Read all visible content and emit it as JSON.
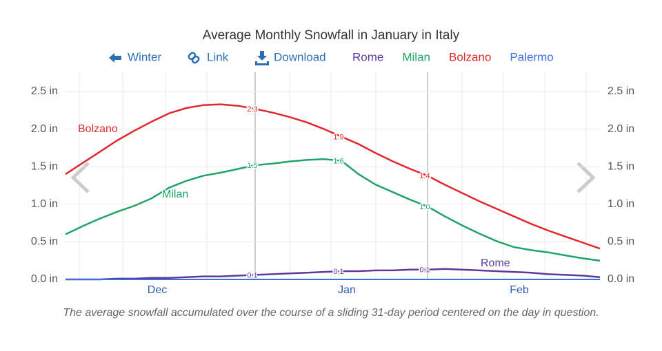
{
  "chart_data": {
    "type": "line",
    "title": "Average Monthly Snowfall in January in Italy",
    "nav": [
      "Winter",
      "Link",
      "Download"
    ],
    "categories": [
      null,
      null,
      null,
      null,
      null,
      "Dec",
      null,
      null,
      null,
      null,
      null,
      null,
      null,
      null,
      null,
      null,
      "Jan",
      null,
      null,
      null,
      null,
      null,
      null,
      null,
      null,
      null,
      "Feb",
      null,
      null,
      null,
      null,
      null
    ],
    "series": [
      {
        "name": "Rome",
        "color": "#5b3a9b",
        "values": [
          0.0,
          0.0,
          0.0,
          0.01,
          0.01,
          0.02,
          0.02,
          0.03,
          0.04,
          0.04,
          0.05,
          0.06,
          0.07,
          0.08,
          0.09,
          0.1,
          0.11,
          0.11,
          0.12,
          0.12,
          0.13,
          0.13,
          0.14,
          0.13,
          0.12,
          0.11,
          0.1,
          0.09,
          0.07,
          0.06,
          0.05,
          0.03
        ],
        "value_labels": [
          null,
          null,
          null,
          null,
          null,
          null,
          null,
          null,
          null,
          null,
          null,
          "0.1",
          null,
          null,
          null,
          null,
          "0.1",
          null,
          null,
          null,
          null,
          "0.1",
          null,
          null,
          null,
          null,
          null,
          null,
          null,
          null,
          null,
          null
        ]
      },
      {
        "name": "Milan",
        "color": "#1fa366",
        "values": [
          0.6,
          0.71,
          0.81,
          0.9,
          0.98,
          1.08,
          1.22,
          1.31,
          1.38,
          1.42,
          1.47,
          1.52,
          1.54,
          1.57,
          1.59,
          1.6,
          1.58,
          1.4,
          1.26,
          1.16,
          1.06,
          0.97,
          0.84,
          0.72,
          0.61,
          0.51,
          0.43,
          0.39,
          0.36,
          0.32,
          0.28,
          0.25
        ],
        "value_labels": [
          null,
          null,
          null,
          null,
          null,
          null,
          null,
          null,
          null,
          null,
          null,
          "1.5",
          null,
          null,
          null,
          null,
          "1.6",
          null,
          null,
          null,
          null,
          "1.0",
          null,
          null,
          null,
          null,
          null,
          null,
          null,
          null,
          null,
          null
        ]
      },
      {
        "name": "Bolzano",
        "color": "#e3262d",
        "values": [
          1.4,
          1.55,
          1.7,
          1.85,
          1.98,
          2.1,
          2.21,
          2.28,
          2.32,
          2.33,
          2.31,
          2.27,
          2.22,
          2.16,
          2.09,
          2.0,
          1.9,
          1.8,
          1.68,
          1.57,
          1.47,
          1.38,
          1.26,
          1.15,
          1.04,
          0.94,
          0.84,
          0.74,
          0.65,
          0.57,
          0.49,
          0.41
        ],
        "value_labels": [
          null,
          null,
          null,
          null,
          null,
          null,
          null,
          null,
          null,
          null,
          null,
          "2.3",
          null,
          null,
          null,
          null,
          "1.9",
          null,
          null,
          null,
          null,
          "1.4",
          null,
          null,
          null,
          null,
          null,
          null,
          null,
          null,
          null,
          null
        ]
      },
      {
        "name": "Palermo",
        "color": "#3a6fe0",
        "values": [
          0,
          0,
          0,
          0,
          0,
          0,
          0,
          0,
          0,
          0,
          0,
          0,
          0,
          0,
          0,
          0,
          0,
          0,
          0,
          0,
          0,
          0,
          0,
          0,
          0,
          0,
          0,
          0,
          0,
          0,
          0,
          0
        ]
      }
    ],
    "ylim": [
      0,
      2.5
    ],
    "yticks": [
      {
        "value": 0,
        "label": "0.0 in"
      },
      {
        "value": 0.5,
        "label": "0.5 in"
      },
      {
        "value": 1,
        "label": "1.0 in"
      },
      {
        "value": 1.5,
        "label": "1.5 in"
      },
      {
        "value": 2,
        "label": "2.0 in"
      },
      {
        "value": 2.5,
        "label": "2.5 in"
      }
    ],
    "grid": true
  },
  "caption": "The average snowfall accumulated over the course of a sliding 31-day period centered on the day in question."
}
